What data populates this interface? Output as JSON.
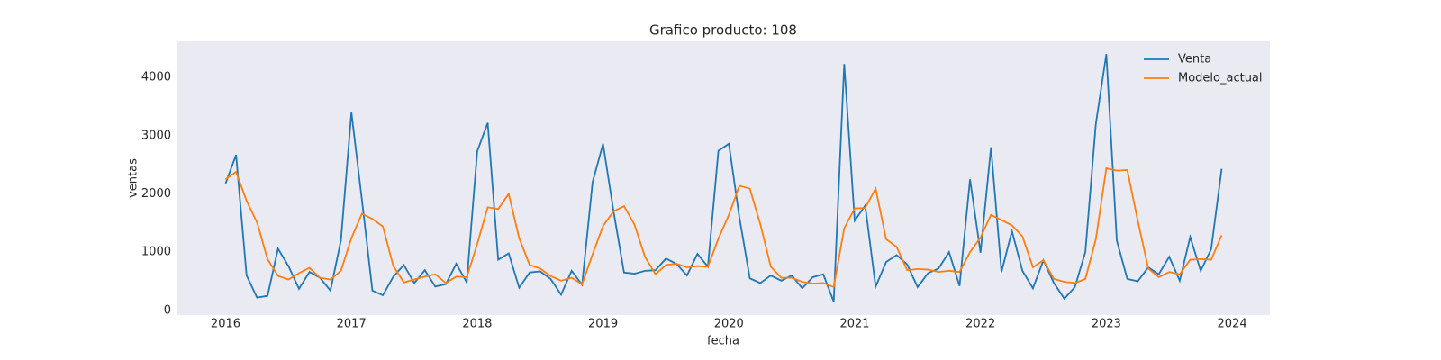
{
  "chart_data": {
    "type": "line",
    "title": "Grafico producto: 108",
    "xlabel": "fecha",
    "ylabel": "ventas",
    "x": [
      "2016-01",
      "2016-02",
      "2016-03",
      "2016-04",
      "2016-05",
      "2016-06",
      "2016-07",
      "2016-08",
      "2016-09",
      "2016-10",
      "2016-11",
      "2016-12",
      "2017-01",
      "2017-02",
      "2017-03",
      "2017-04",
      "2017-05",
      "2017-06",
      "2017-07",
      "2017-08",
      "2017-09",
      "2017-10",
      "2017-11",
      "2017-12",
      "2018-01",
      "2018-02",
      "2018-03",
      "2018-04",
      "2018-05",
      "2018-06",
      "2018-07",
      "2018-08",
      "2018-09",
      "2018-10",
      "2018-11",
      "2018-12",
      "2019-01",
      "2019-02",
      "2019-03",
      "2019-04",
      "2019-05",
      "2019-06",
      "2019-07",
      "2019-08",
      "2019-09",
      "2019-10",
      "2019-11",
      "2019-12",
      "2020-01",
      "2020-02",
      "2020-03",
      "2020-04",
      "2020-05",
      "2020-06",
      "2020-07",
      "2020-08",
      "2020-09",
      "2020-10",
      "2020-11",
      "2020-12",
      "2021-01",
      "2021-02",
      "2021-03",
      "2021-04",
      "2021-05",
      "2021-06",
      "2021-07",
      "2021-08",
      "2021-09",
      "2021-10",
      "2021-11",
      "2021-12",
      "2022-01",
      "2022-02",
      "2022-03",
      "2022-04",
      "2022-05",
      "2022-06",
      "2022-07",
      "2022-08",
      "2022-09",
      "2022-10",
      "2022-11",
      "2022-12",
      "2023-01",
      "2023-02",
      "2023-03",
      "2023-04",
      "2023-05",
      "2023-06",
      "2023-07",
      "2023-08",
      "2023-09",
      "2023-10",
      "2023-11",
      "2023-12"
    ],
    "series": [
      {
        "name": "Venta",
        "color": "#1f77b4",
        "values": [
          2180,
          2670,
          600,
          220,
          250,
          1060,
          760,
          370,
          660,
          560,
          340,
          1200,
          3400,
          1900,
          340,
          260,
          580,
          780,
          470,
          690,
          410,
          450,
          800,
          480,
          2730,
          3220,
          870,
          980,
          390,
          650,
          670,
          540,
          270,
          680,
          440,
          2200,
          2860,
          1700,
          650,
          630,
          680,
          690,
          890,
          800,
          600,
          970,
          750,
          2740,
          2860,
          1600,
          550,
          470,
          600,
          510,
          600,
          380,
          570,
          620,
          150,
          4230,
          1540,
          1800,
          410,
          830,
          950,
          790,
          400,
          640,
          720,
          1000,
          420,
          2250,
          990,
          2800,
          660,
          1360,
          680,
          380,
          860,
          470,
          200,
          400,
          1000,
          3200,
          4400,
          1200,
          540,
          500,
          740,
          620,
          920,
          510,
          1260,
          680,
          1050,
          2430
        ]
      },
      {
        "name": "Modelo_actual",
        "color": "#ff7f0e",
        "values": [
          2250,
          2380,
          1880,
          1510,
          880,
          590,
          530,
          640,
          730,
          560,
          530,
          680,
          1240,
          1660,
          1570,
          1440,
          760,
          480,
          530,
          580,
          620,
          470,
          580,
          570,
          1140,
          1770,
          1740,
          2000,
          1240,
          780,
          720,
          590,
          510,
          560,
          450,
          960,
          1450,
          1700,
          1790,
          1470,
          920,
          620,
          780,
          800,
          740,
          760,
          750,
          1230,
          1640,
          2140,
          2090,
          1480,
          750,
          560,
          560,
          490,
          460,
          470,
          400,
          1410,
          1750,
          1760,
          2090,
          1220,
          1090,
          690,
          710,
          700,
          660,
          680,
          660,
          1000,
          1250,
          1640,
          1550,
          1460,
          1270,
          740,
          860,
          540,
          490,
          470,
          540,
          1220,
          2440,
          2400,
          2410,
          1540,
          720,
          570,
          660,
          620,
          870,
          880,
          870,
          1290
        ]
      }
    ],
    "xlim": [
      2015.61,
      2024.3
    ],
    "xticks": [
      2016,
      2017,
      2018,
      2019,
      2020,
      2021,
      2022,
      2023,
      2024
    ],
    "ylim": [
      -80,
      4620
    ],
    "yticks": [
      0,
      1000,
      2000,
      3000,
      4000
    ],
    "grid": false,
    "legend": "upper right",
    "background": "#eaeaf2"
  }
}
